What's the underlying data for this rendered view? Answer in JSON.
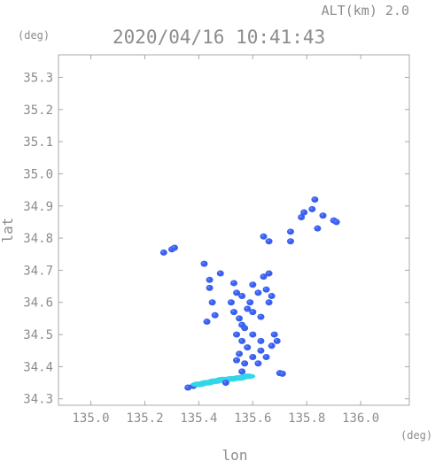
{
  "header": {
    "altitude_label": "ALT(km) 2.0",
    "timestamp": "2020/04/16 10:41:43",
    "lat_unit": "(deg)",
    "lon_unit": "(deg)"
  },
  "chart_data": {
    "type": "scatter",
    "title": "2020/04/16 10:41:43",
    "xlabel": "lon",
    "ylabel": "lat",
    "xlim": [
      134.88,
      136.18
    ],
    "ylim": [
      34.28,
      35.37
    ],
    "grid": false,
    "x_ticks": [
      135.0,
      135.2,
      135.4,
      135.6,
      135.8,
      136.0
    ],
    "x_tick_labels": [
      "135.0",
      "135.2",
      "135.4",
      "135.6",
      "135.8",
      "136.0"
    ],
    "y_ticks": [
      34.3,
      34.4,
      34.5,
      34.6,
      34.7,
      34.8,
      34.9,
      35.0,
      35.1,
      35.2,
      35.3
    ],
    "y_tick_labels": [
      "34.3",
      "34.4",
      "34.5",
      "34.6",
      "34.7",
      "34.8",
      "34.9",
      "35.0",
      "35.1",
      "35.2",
      "35.3"
    ],
    "colors": {
      "echo_blue": "#3b5ff0",
      "echo_light": "#5f86f5",
      "echo_cyan": "#33d6e8",
      "frame": "#a8a8a8"
    },
    "points": [
      {
        "x": 135.83,
        "y": 34.92,
        "v": 1
      },
      {
        "x": 135.82,
        "y": 34.89,
        "v": 1
      },
      {
        "x": 135.79,
        "y": 34.88,
        "v": 1
      },
      {
        "x": 135.78,
        "y": 34.865,
        "v": 1
      },
      {
        "x": 135.86,
        "y": 34.87,
        "v": 1
      },
      {
        "x": 135.9,
        "y": 34.855,
        "v": 1
      },
      {
        "x": 135.91,
        "y": 34.85,
        "v": 1
      },
      {
        "x": 135.84,
        "y": 34.83,
        "v": 1
      },
      {
        "x": 135.74,
        "y": 34.79,
        "v": 1
      },
      {
        "x": 135.74,
        "y": 34.82,
        "v": 1
      },
      {
        "x": 135.66,
        "y": 34.79,
        "v": 1
      },
      {
        "x": 135.64,
        "y": 34.805,
        "v": 1
      },
      {
        "x": 135.3,
        "y": 34.765,
        "v": 1
      },
      {
        "x": 135.31,
        "y": 34.77,
        "v": 1
      },
      {
        "x": 135.27,
        "y": 34.755,
        "v": 1
      },
      {
        "x": 135.42,
        "y": 34.72,
        "v": 1
      },
      {
        "x": 135.44,
        "y": 34.67,
        "v": 1
      },
      {
        "x": 135.48,
        "y": 34.69,
        "v": 1
      },
      {
        "x": 135.44,
        "y": 34.645,
        "v": 1
      },
      {
        "x": 135.45,
        "y": 34.6,
        "v": 1
      },
      {
        "x": 135.46,
        "y": 34.56,
        "v": 1
      },
      {
        "x": 135.43,
        "y": 34.54,
        "v": 1
      },
      {
        "x": 135.53,
        "y": 34.66,
        "v": 1
      },
      {
        "x": 135.54,
        "y": 34.63,
        "v": 1
      },
      {
        "x": 135.52,
        "y": 34.6,
        "v": 1
      },
      {
        "x": 135.56,
        "y": 34.62,
        "v": 1
      },
      {
        "x": 135.6,
        "y": 34.655,
        "v": 1
      },
      {
        "x": 135.64,
        "y": 34.68,
        "v": 1
      },
      {
        "x": 135.66,
        "y": 34.69,
        "v": 1
      },
      {
        "x": 135.62,
        "y": 34.63,
        "v": 1
      },
      {
        "x": 135.65,
        "y": 34.64,
        "v": 1
      },
      {
        "x": 135.67,
        "y": 34.62,
        "v": 1
      },
      {
        "x": 135.58,
        "y": 34.58,
        "v": 1
      },
      {
        "x": 135.6,
        "y": 34.57,
        "v": 1
      },
      {
        "x": 135.63,
        "y": 34.555,
        "v": 1
      },
      {
        "x": 135.66,
        "y": 34.6,
        "v": 1
      },
      {
        "x": 135.55,
        "y": 34.55,
        "v": 1
      },
      {
        "x": 135.57,
        "y": 34.52,
        "v": 1
      },
      {
        "x": 135.54,
        "y": 34.5,
        "v": 1
      },
      {
        "x": 135.56,
        "y": 34.48,
        "v": 1
      },
      {
        "x": 135.6,
        "y": 34.5,
        "v": 1
      },
      {
        "x": 135.58,
        "y": 34.46,
        "v": 1
      },
      {
        "x": 135.63,
        "y": 34.48,
        "v": 1
      },
      {
        "x": 135.68,
        "y": 34.5,
        "v": 1
      },
      {
        "x": 135.69,
        "y": 34.48,
        "v": 1
      },
      {
        "x": 135.67,
        "y": 34.465,
        "v": 1
      },
      {
        "x": 135.55,
        "y": 34.44,
        "v": 1
      },
      {
        "x": 135.54,
        "y": 34.42,
        "v": 1
      },
      {
        "x": 135.57,
        "y": 34.41,
        "v": 1
      },
      {
        "x": 135.6,
        "y": 34.43,
        "v": 1
      },
      {
        "x": 135.63,
        "y": 34.45,
        "v": 1
      },
      {
        "x": 135.65,
        "y": 34.43,
        "v": 1
      },
      {
        "x": 135.62,
        "y": 34.41,
        "v": 1
      },
      {
        "x": 135.56,
        "y": 34.385,
        "v": 1
      },
      {
        "x": 135.7,
        "y": 34.38,
        "v": 1
      },
      {
        "x": 135.71,
        "y": 34.378,
        "v": 1
      },
      {
        "x": 135.38,
        "y": 34.34,
        "v": 1
      },
      {
        "x": 135.36,
        "y": 34.335,
        "v": 1
      },
      {
        "x": 135.4,
        "y": 34.345,
        "v": 2
      },
      {
        "x": 135.43,
        "y": 34.35,
        "v": 2
      },
      {
        "x": 135.46,
        "y": 34.355,
        "v": 2
      },
      {
        "x": 135.49,
        "y": 34.36,
        "v": 2
      },
      {
        "x": 135.52,
        "y": 34.362,
        "v": 2
      },
      {
        "x": 135.55,
        "y": 34.365,
        "v": 2
      },
      {
        "x": 135.58,
        "y": 34.37,
        "v": 2
      },
      {
        "x": 135.5,
        "y": 34.35,
        "v": 1
      },
      {
        "x": 135.56,
        "y": 34.53,
        "v": 1
      },
      {
        "x": 135.59,
        "y": 34.6,
        "v": 1
      },
      {
        "x": 135.53,
        "y": 34.57,
        "v": 1
      }
    ]
  }
}
